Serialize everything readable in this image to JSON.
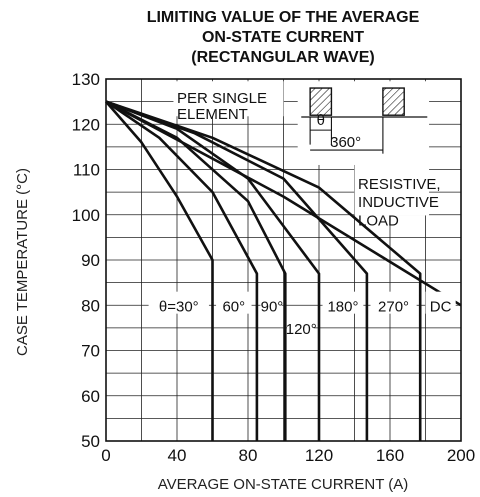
{
  "chart_data": {
    "type": "line",
    "title": [
      "LIMITING VALUE OF THE AVERAGE",
      "ON-STATE CURRENT",
      "(RECTANGULAR WAVE)"
    ],
    "xlabel": "AVERAGE ON-STATE CURRENT (A)",
    "ylabel": "CASE TEMPERATURE (°C)",
    "xlim": [
      0,
      200
    ],
    "ylim": [
      50,
      130
    ],
    "x_ticks": [
      "0",
      "40",
      "80",
      "120",
      "160",
      "200"
    ],
    "y_ticks": [
      "50",
      "60",
      "70",
      "80",
      "90",
      "100",
      "110",
      "120",
      "130"
    ],
    "grid": true,
    "annotations": {
      "per_element": [
        "PER SINGLE",
        "ELEMENT"
      ],
      "load": [
        "RESISTIVE,",
        "INDUCTIVE",
        "LOAD"
      ],
      "theta": "θ",
      "period": "360°"
    },
    "series": [
      {
        "name": "θ=30°",
        "x": [
          0,
          20,
          40,
          60,
          60
        ],
        "y": [
          125,
          116,
          104,
          90,
          50
        ]
      },
      {
        "name": "60°",
        "x": [
          0,
          30,
          60,
          85,
          85
        ],
        "y": [
          125,
          117,
          105,
          87,
          50
        ]
      },
      {
        "name": "90°",
        "x": [
          0,
          40,
          80,
          101,
          101
        ],
        "y": [
          125,
          117,
          103,
          87,
          50
        ]
      },
      {
        "name": "120°",
        "x": [
          0,
          40,
          80,
          120,
          120
        ],
        "y": [
          125,
          119,
          108,
          87,
          50
        ]
      },
      {
        "name": "180°",
        "x": [
          0,
          50,
          100,
          147,
          147
        ],
        "y": [
          125,
          118,
          108,
          87,
          50
        ]
      },
      {
        "name": "270°",
        "x": [
          0,
          60,
          120,
          177,
          177
        ],
        "y": [
          125,
          117,
          106,
          87,
          50
        ]
      },
      {
        "name": "DC",
        "x": [
          0,
          100,
          200
        ],
        "y": [
          125,
          104,
          80
        ]
      }
    ]
  }
}
